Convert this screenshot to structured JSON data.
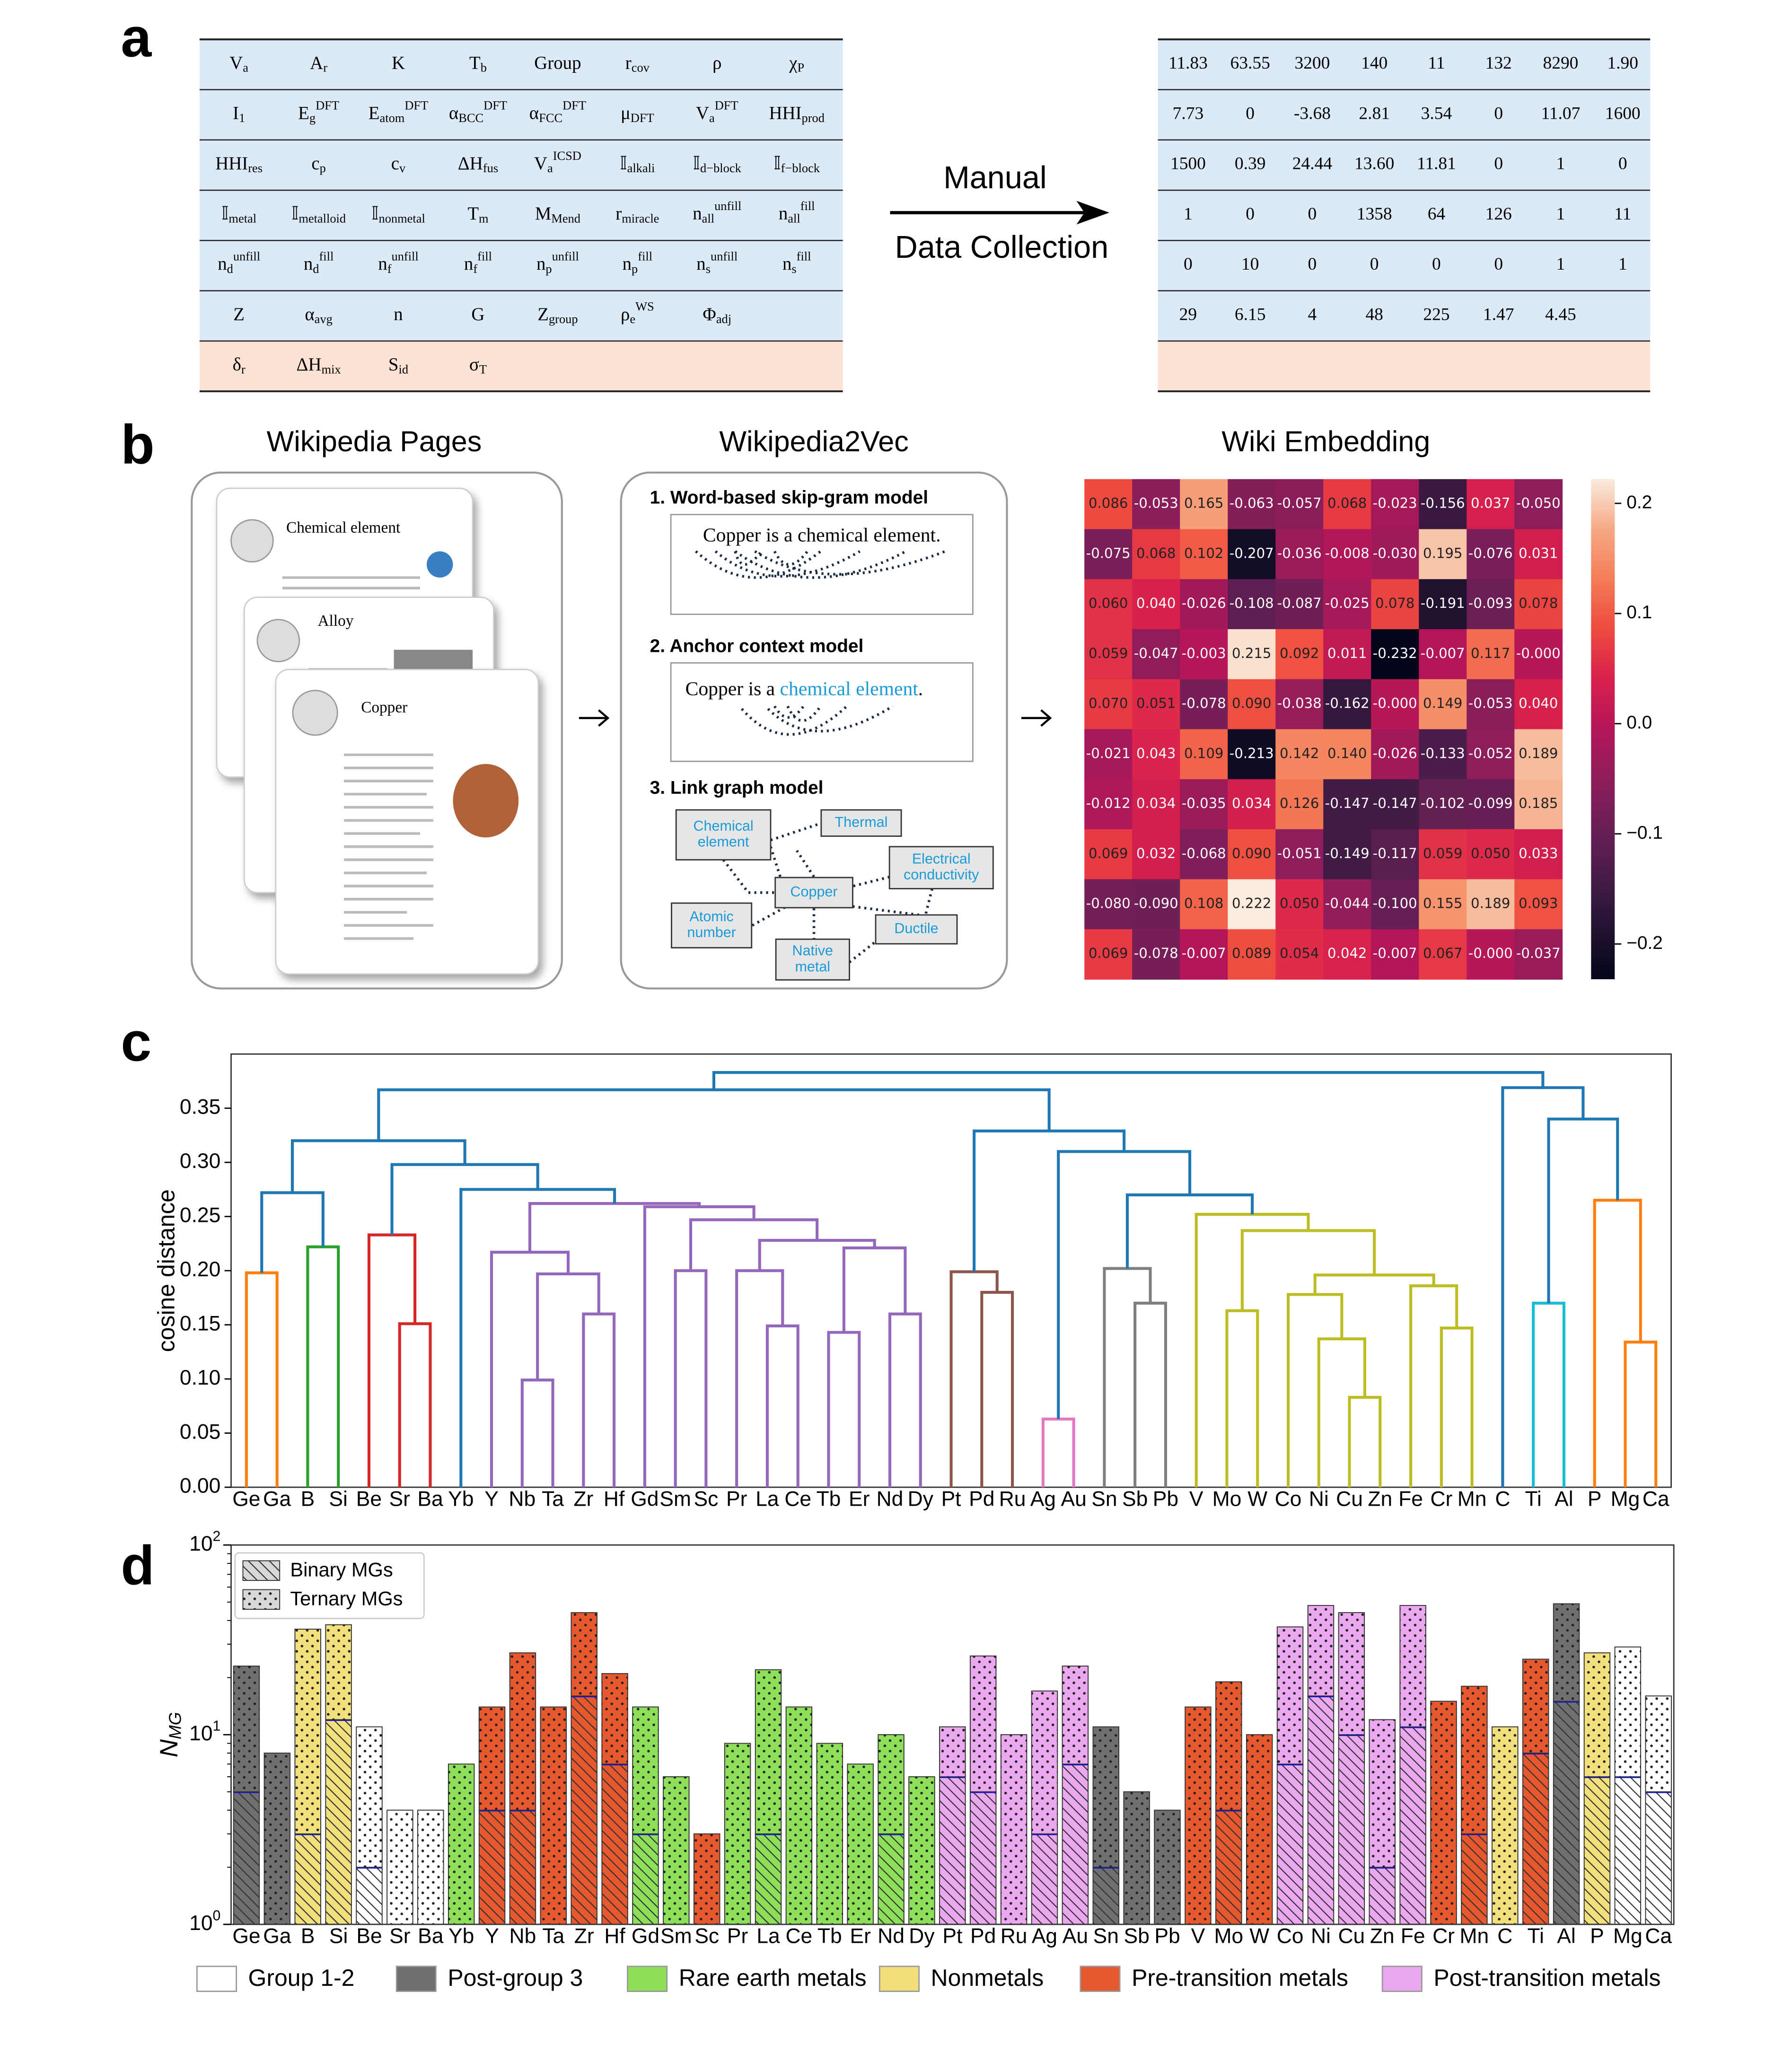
{
  "panels": [
    "a",
    "b",
    "c",
    "d"
  ],
  "feature_table": {
    "rows": [
      [
        "V_a",
        "A_r",
        "K",
        "T_b",
        "Group",
        "r_cov",
        "ρ",
        "χ_P"
      ],
      [
        "I_1",
        "E_g^DFT",
        "E_atom^DFT",
        "α_BCC^DFT",
        "α_FCC^DFT",
        "μ_DFT",
        "V_a^DFT",
        "HHI_prod"
      ],
      [
        "HHI_res",
        "c_p",
        "c_v",
        "ΔH_fus",
        "V_a^ICSD",
        "𝕀_alkali",
        "𝕀_d−block",
        "𝕀_f−block"
      ],
      [
        "𝕀_metal",
        "𝕀_metalloid",
        "𝕀_nonmetal",
        "T_m",
        "M_Mend",
        "r_miracle",
        "n_all^unfill",
        "n_all^fill"
      ],
      [
        "n_d^unfill",
        "n_d^fill",
        "n_f^unfill",
        "n_f^fill",
        "n_p^unfill",
        "n_p^fill",
        "n_s^unfill",
        "n_s^fill"
      ],
      [
        "Z",
        "α_avg",
        "n",
        "G",
        "Z_group",
        "ρ_e^WS",
        "Φ_adj"
      ],
      [
        "δ_r",
        "ΔH_mix",
        "S_id",
        "σ_T"
      ]
    ]
  },
  "value_table": {
    "rows": [
      [
        "11.83",
        "63.55",
        "3200",
        "140",
        "11",
        "132",
        "8290",
        "1.90"
      ],
      [
        "7.73",
        "0",
        "-3.68",
        "2.81",
        "3.54",
        "0",
        "11.07",
        "1600"
      ],
      [
        "1500",
        "0.39",
        "24.44",
        "13.60",
        "11.81",
        "0",
        "1",
        "0"
      ],
      [
        "1",
        "0",
        "0",
        "1358",
        "64",
        "126",
        "1",
        "11"
      ],
      [
        "0",
        "10",
        "0",
        "0",
        "0",
        "0",
        "1",
        "1"
      ],
      [
        "29",
        "6.15",
        "4",
        "48",
        "225",
        "1.47",
        "4.45"
      ]
    ]
  },
  "arrow_label": [
    "Manual",
    "Data Collection"
  ],
  "wikipedia_pages": {
    "title": "Wikipedia Pages",
    "pages": [
      "Chemical element",
      "Alloy",
      "Copper"
    ]
  },
  "wikipedia2vec": {
    "title": "Wikipedia2Vec",
    "models": [
      {
        "name": "1. Word-based skip-gram model",
        "sentence": "Copper is a chemical element."
      },
      {
        "name": "2. Anchor context model",
        "sentence": [
          "Copper is a ",
          "chemical element",
          "."
        ]
      },
      {
        "name": "3. Link graph model",
        "nodes": [
          "Chemical element",
          "Thermal",
          "Electrical conductivity",
          "Copper",
          "Atomic number",
          "Ductile",
          "Native metal"
        ]
      }
    ]
  },
  "chart_data": [
    {
      "type": "heatmap",
      "title": "Wiki Embedding",
      "colormap": "rocket",
      "vlim": [
        -0.232,
        0.222
      ],
      "colorbar_ticks": [
        0.2,
        0.1,
        {
          "value": 0,
          "label": "0.0"
        },
        {
          "value": -0.1,
          "label": "−0.1"
        },
        {
          "value": -0.2,
          "label": "−0.2"
        }
      ],
      "values": [
        [
          0.086,
          -0.053,
          0.165,
          -0.063,
          -0.057,
          0.068,
          -0.023,
          -0.156,
          0.037,
          -0.05
        ],
        [
          -0.075,
          0.068,
          0.102,
          -0.207,
          -0.036,
          -0.008,
          -0.03,
          0.195,
          -0.076,
          0.031
        ],
        [
          0.06,
          0.04,
          -0.026,
          -0.108,
          -0.087,
          -0.025,
          0.078,
          -0.191,
          -0.093,
          0.078
        ],
        [
          0.059,
          -0.047,
          -0.003,
          0.215,
          0.092,
          0.011,
          -0.232,
          -0.007,
          0.117,
          0
        ],
        [
          0.07,
          0.051,
          -0.078,
          0.09,
          -0.038,
          -0.162,
          0,
          0.149,
          -0.053,
          0.04
        ],
        [
          -0.021,
          0.043,
          0.109,
          -0.213,
          0.142,
          0.14,
          -0.026,
          -0.133,
          -0.052,
          0.189
        ],
        [
          -0.012,
          0.034,
          -0.035,
          0.034,
          0.126,
          -0.147,
          -0.147,
          -0.102,
          -0.099,
          0.185
        ],
        [
          0.069,
          0.032,
          -0.068,
          0.09,
          -0.051,
          -0.149,
          -0.117,
          0.059,
          0.05,
          0.033
        ],
        [
          -0.08,
          -0.09,
          0.108,
          0.222,
          0.05,
          -0.044,
          -0.1,
          0.155,
          0.189,
          0.093
        ],
        [
          0.069,
          -0.078,
          -0.007,
          0.089,
          0.054,
          0.042,
          -0.007,
          0.067,
          0,
          -0.037
        ]
      ],
      "value_labels": [
        [
          "0.086",
          "-0.053",
          "0.165",
          "-0.063",
          "-0.057",
          "0.068",
          "-0.023",
          "-0.156",
          "0.037",
          "-0.050"
        ],
        [
          "-0.075",
          "0.068",
          "0.102",
          "-0.207",
          "-0.036",
          "-0.008",
          "-0.030",
          "0.195",
          "-0.076",
          "0.031"
        ],
        [
          "0.060",
          "0.040",
          "-0.026",
          "-0.108",
          "-0.087",
          "-0.025",
          "0.078",
          "-0.191",
          "-0.093",
          "0.078"
        ],
        [
          "0.059",
          "-0.047",
          "-0.003",
          "0.215",
          "0.092",
          "0.011",
          "-0.232",
          "-0.007",
          "0.117",
          "-0.000"
        ],
        [
          "0.070",
          "0.051",
          "-0.078",
          "0.090",
          "-0.038",
          "-0.162",
          "-0.000",
          "0.149",
          "-0.053",
          "0.040"
        ],
        [
          "-0.021",
          "0.043",
          "0.109",
          "-0.213",
          "0.142",
          "0.140",
          "-0.026",
          "-0.133",
          "-0.052",
          "0.189"
        ],
        [
          "-0.012",
          "0.034",
          "-0.035",
          "0.034",
          "0.126",
          "-0.147",
          "-0.147",
          "-0.102",
          "-0.099",
          "0.185"
        ],
        [
          "0.069",
          "0.032",
          "-0.068",
          "0.090",
          "-0.051",
          "-0.149",
          "-0.117",
          "0.059",
          "0.050",
          "0.033"
        ],
        [
          "-0.080",
          "-0.090",
          "0.108",
          "0.222",
          "0.050",
          "-0.044",
          "-0.100",
          "0.155",
          "0.189",
          "0.093"
        ],
        [
          "0.069",
          "-0.078",
          "-0.007",
          "0.089",
          "0.054",
          "0.042",
          "-0.007",
          "0.067",
          "-0.000",
          "-0.037"
        ]
      ]
    },
    {
      "type": "dendrogram",
      "ylabel": "cosine distance",
      "ylim": [
        0,
        0.4
      ],
      "yticks": [
        {
          "value": 0,
          "label": "0.00"
        },
        {
          "value": 0.05,
          "label": "0.05"
        },
        {
          "value": 0.1,
          "label": "0.10"
        },
        {
          "value": 0.15,
          "label": "0.15"
        },
        {
          "value": 0.2,
          "label": "0.20"
        },
        {
          "value": 0.25,
          "label": "0.25"
        },
        {
          "value": 0.3,
          "label": "0.30"
        },
        {
          "value": 0.35,
          "label": "0.35"
        }
      ],
      "categories": [
        "Ge",
        "Ga",
        "B",
        "Si",
        "Be",
        "Sr",
        "Ba",
        "Yb",
        "Y",
        "Nb",
        "Ta",
        "Zr",
        "Hf",
        "Gd",
        "Sm",
        "Sc",
        "Pr",
        "La",
        "Ce",
        "Tb",
        "Er",
        "Nd",
        "Dy",
        "Pt",
        "Pd",
        "Ru",
        "Ag",
        "Au",
        "Sn",
        "Sb",
        "Pb",
        "V",
        "Mo",
        "W",
        "Co",
        "Ni",
        "Cu",
        "Zn",
        "Fe",
        "Cr",
        "Mn",
        "C",
        "Ti",
        "Al",
        "P",
        "Mg",
        "Ca"
      ],
      "links": [
        {
          "left": 0,
          "right": 1,
          "height": 0.198,
          "color": "#ff7f0e"
        },
        {
          "left": 2,
          "right": 3,
          "height": 0.222,
          "color": "#2ca02c"
        },
        {
          "left": 47,
          "right": 48,
          "height": 0.272,
          "color": "#1f77b4"
        },
        {
          "left": 5,
          "right": 6,
          "height": 0.151,
          "color": "#d62728"
        },
        {
          "left": 4,
          "right": 50,
          "height": 0.233,
          "color": "#d62728"
        },
        {
          "left": 9,
          "right": 10,
          "height": 0.099,
          "color": "#9467bd"
        },
        {
          "left": 11,
          "right": 12,
          "height": 0.16,
          "color": "#9467bd"
        },
        {
          "left": 52,
          "right": 53,
          "height": 0.197,
          "color": "#9467bd"
        },
        {
          "left": 8,
          "right": 54,
          "height": 0.217,
          "color": "#9467bd"
        },
        {
          "left": 17,
          "right": 18,
          "height": 0.149,
          "color": "#9467bd"
        },
        {
          "left": 16,
          "right": 56,
          "height": 0.2,
          "color": "#9467bd"
        },
        {
          "left": 19,
          "right": 20,
          "height": 0.143,
          "color": "#9467bd"
        },
        {
          "left": 21,
          "right": 22,
          "height": 0.16,
          "color": "#9467bd"
        },
        {
          "left": 58,
          "right": 59,
          "height": 0.221,
          "color": "#9467bd"
        },
        {
          "left": 57,
          "right": 60,
          "height": 0.228,
          "color": "#9467bd"
        },
        {
          "left": 14,
          "right": 15,
          "height": 0.2,
          "color": "#9467bd"
        },
        {
          "left": 62,
          "right": 61,
          "height": 0.247,
          "color": "#9467bd"
        },
        {
          "left": 13,
          "right": 63,
          "height": 0.259,
          "color": "#9467bd"
        },
        {
          "left": 55,
          "right": 64,
          "height": 0.262,
          "color": "#9467bd"
        },
        {
          "left": 7,
          "right": 65,
          "height": 0.275,
          "color": "#1f77b4"
        },
        {
          "left": 51,
          "right": 66,
          "height": 0.298,
          "color": "#1f77b4"
        },
        {
          "left": 49,
          "right": 67,
          "height": 0.32,
          "color": "#1f77b4"
        },
        {
          "left": 24,
          "right": 25,
          "height": 0.18,
          "color": "#8c564b"
        },
        {
          "left": 23,
          "right": 69,
          "height": 0.199,
          "color": "#8c564b"
        },
        {
          "left": 26,
          "right": 27,
          "height": 0.063,
          "color": "#e377c2"
        },
        {
          "left": 29,
          "right": 30,
          "height": 0.17,
          "color": "#7f7f7f"
        },
        {
          "left": 28,
          "right": 72,
          "height": 0.202,
          "color": "#7f7f7f"
        },
        {
          "left": 32,
          "right": 33,
          "height": 0.163,
          "color": "#bcbd22"
        },
        {
          "left": 36,
          "right": 37,
          "height": 0.083,
          "color": "#bcbd22"
        },
        {
          "left": 35,
          "right": 75,
          "height": 0.137,
          "color": "#bcbd22"
        },
        {
          "left": 34,
          "right": 76,
          "height": 0.178,
          "color": "#bcbd22"
        },
        {
          "left": 39,
          "right": 40,
          "height": 0.147,
          "color": "#bcbd22"
        },
        {
          "left": 38,
          "right": 78,
          "height": 0.186,
          "color": "#bcbd22"
        },
        {
          "left": 77,
          "right": 79,
          "height": 0.196,
          "color": "#bcbd22"
        },
        {
          "left": 74,
          "right": 80,
          "height": 0.237,
          "color": "#bcbd22"
        },
        {
          "left": 31,
          "right": 81,
          "height": 0.252,
          "color": "#bcbd22"
        },
        {
          "left": 73,
          "right": 82,
          "height": 0.27,
          "color": "#1f77b4"
        },
        {
          "left": 71,
          "right": 83,
          "height": 0.31,
          "color": "#1f77b4"
        },
        {
          "left": 70,
          "right": 84,
          "height": 0.329,
          "color": "#1f77b4"
        },
        {
          "left": 68,
          "right": 85,
          "height": 0.367,
          "color": "#1f77b4"
        },
        {
          "left": 42,
          "right": 43,
          "height": 0.17,
          "color": "#17becf"
        },
        {
          "left": 45,
          "right": 46,
          "height": 0.134,
          "color": "#ff7f0e"
        },
        {
          "left": 44,
          "right": 88,
          "height": 0.265,
          "color": "#ff7f0e"
        },
        {
          "left": 87,
          "right": 89,
          "height": 0.34,
          "color": "#1f77b4"
        },
        {
          "left": 41,
          "right": 90,
          "height": 0.369,
          "color": "#1f77b4"
        },
        {
          "left": 86,
          "right": 91,
          "height": 0.383,
          "color": "#1f77b4"
        }
      ]
    },
    {
      "type": "bar",
      "stacked": true,
      "log_y": true,
      "ylabel": "N_MG",
      "ylim": [
        1,
        100
      ],
      "yticks": [
        {
          "value": 1,
          "label": "10^0"
        },
        {
          "value": 10,
          "label": "10^1"
        },
        {
          "value": 100,
          "label": "10^2"
        }
      ],
      "marker_color": "#1010e0",
      "legend": "upper left",
      "categories": [
        "Ge",
        "Ga",
        "B",
        "Si",
        "Be",
        "Sr",
        "Ba",
        "Yb",
        "Y",
        "Nb",
        "Ta",
        "Zr",
        "Hf",
        "Gd",
        "Sm",
        "Sc",
        "Pr",
        "La",
        "Ce",
        "Tb",
        "Er",
        "Nd",
        "Dy",
        "Pt",
        "Pd",
        "Ru",
        "Ag",
        "Au",
        "Sn",
        "Sb",
        "Pb",
        "V",
        "Mo",
        "W",
        "Co",
        "Ni",
        "Cu",
        "Zn",
        "Fe",
        "Cr",
        "Mn",
        "C",
        "Ti",
        "Al",
        "P",
        "Mg",
        "Ca"
      ],
      "series": [
        {
          "name": "Binary MGs",
          "pattern": "hatch",
          "values": [
            5,
            0,
            3,
            12,
            2,
            0,
            0,
            0,
            4,
            4,
            0,
            16,
            7,
            3,
            0,
            0,
            0,
            3,
            0,
            0,
            0,
            3,
            0,
            6,
            5,
            0,
            3,
            7,
            2,
            0,
            0,
            0,
            4,
            0,
            7,
            16,
            10,
            2,
            11,
            0,
            3,
            0,
            8,
            15,
            6,
            6,
            5
          ]
        },
        {
          "name": "Ternary MGs",
          "pattern": "dots",
          "values": [
            18,
            8,
            33,
            26,
            9,
            4,
            4,
            7,
            10,
            23,
            14,
            28,
            14,
            11,
            6,
            3,
            9,
            19,
            14,
            9,
            7,
            7,
            6,
            5,
            21,
            10,
            14,
            16,
            9,
            5,
            4,
            14,
            15,
            10,
            30,
            32,
            34,
            10,
            37,
            15,
            15,
            11,
            17,
            34,
            21,
            23,
            11
          ]
        }
      ],
      "groups": [
        {
          "name": "Group 1-2",
          "color": "#ffffff"
        },
        {
          "name": "Post-group 3",
          "color": "#707072"
        },
        {
          "name": "Rare earth metals",
          "color": "#8ee05a"
        },
        {
          "name": "Nonmetals",
          "color": "#f2e07d"
        },
        {
          "name": "Pre-transition metals",
          "color": "#e8582e"
        },
        {
          "name": "Post-transition metals",
          "color": "#eba8ee"
        }
      ],
      "category_groups": [
        1,
        1,
        3,
        3,
        0,
        0,
        0,
        2,
        4,
        4,
        4,
        4,
        4,
        2,
        2,
        4,
        2,
        2,
        2,
        2,
        2,
        2,
        2,
        5,
        5,
        5,
        5,
        5,
        1,
        1,
        1,
        4,
        4,
        4,
        5,
        5,
        5,
        5,
        5,
        4,
        4,
        3,
        4,
        1,
        3,
        0,
        0
      ]
    }
  ]
}
